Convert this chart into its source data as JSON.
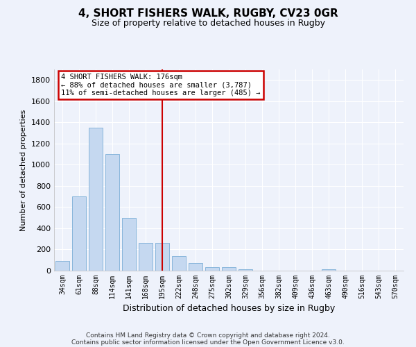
{
  "title1": "4, SHORT FISHERS WALK, RUGBY, CV23 0GR",
  "title2": "Size of property relative to detached houses in Rugby",
  "xlabel": "Distribution of detached houses by size in Rugby",
  "ylabel": "Number of detached properties",
  "categories": [
    "34sqm",
    "61sqm",
    "88sqm",
    "114sqm",
    "141sqm",
    "168sqm",
    "195sqm",
    "222sqm",
    "248sqm",
    "275sqm",
    "302sqm",
    "329sqm",
    "356sqm",
    "382sqm",
    "409sqm",
    "436sqm",
    "463sqm",
    "490sqm",
    "516sqm",
    "543sqm",
    "570sqm"
  ],
  "values": [
    90,
    700,
    1350,
    1100,
    500,
    265,
    265,
    140,
    70,
    35,
    35,
    15,
    0,
    0,
    0,
    0,
    15,
    0,
    0,
    0,
    0
  ],
  "bar_color": "#c5d8f0",
  "bar_edge_color": "#7aaed6",
  "vline_x": 6,
  "annotation_text": "4 SHORT FISHERS WALK: 176sqm\n← 88% of detached houses are smaller (3,787)\n11% of semi-detached houses are larger (485) →",
  "annotation_box_color": "#ffffff",
  "annotation_box_edge": "#cc0000",
  "ylim": [
    0,
    1900
  ],
  "yticks": [
    0,
    200,
    400,
    600,
    800,
    1000,
    1200,
    1400,
    1600,
    1800
  ],
  "background_color": "#eef2fb",
  "grid_color": "#ffffff",
  "footer_line1": "Contains HM Land Registry data © Crown copyright and database right 2024.",
  "footer_line2": "Contains public sector information licensed under the Open Government Licence v3.0."
}
